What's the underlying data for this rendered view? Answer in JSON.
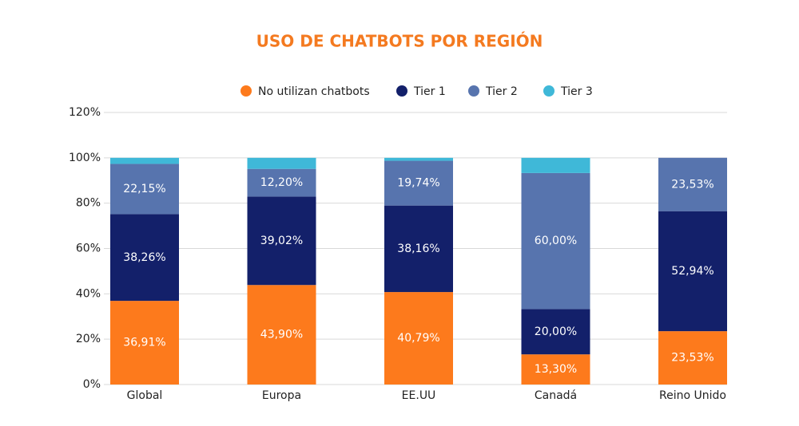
{
  "chart_data": {
    "type": "stacked-bar",
    "title": "USO DE CHATBOTS POR REGIÓN",
    "categories": [
      "Global",
      "Europa",
      "EE.UU",
      "Canadá",
      "Reino Unido"
    ],
    "series": [
      {
        "name": "No utilizan chatbots",
        "color": "#fd7a1c",
        "values": [
          36.91,
          43.9,
          40.79,
          13.3,
          23.53
        ],
        "value_labels": [
          "36,91%",
          "43,90%",
          "40,79%",
          "13,30%",
          "23,53%"
        ]
      },
      {
        "name": "Tier 1",
        "color": "#13206a",
        "values": [
          38.26,
          39.02,
          38.16,
          20.0,
          52.94
        ],
        "value_labels": [
          "38,26%",
          "39,02%",
          "38,16%",
          "20,00%",
          "52,94%"
        ]
      },
      {
        "name": "Tier 2",
        "color": "#5774ae",
        "values": [
          22.15,
          12.2,
          19.74,
          60.0,
          23.53
        ],
        "value_labels": [
          "22,15%",
          "12,20%",
          "19,74%",
          "60,00%",
          "23,53%"
        ]
      },
      {
        "name": "Tier 3",
        "color": "#3fb8d8",
        "values": [
          2.68,
          4.88,
          1.31,
          6.7,
          0
        ]
      }
    ],
    "ylim": [
      0,
      120
    ],
    "yticks": [
      {
        "value": 0,
        "label": "0%"
      },
      {
        "value": 20,
        "label": "20%"
      },
      {
        "value": 40,
        "label": "40%"
      },
      {
        "value": 60,
        "label": "60%"
      },
      {
        "value": 80,
        "label": "80%"
      },
      {
        "value": 100,
        "label": "100%"
      },
      {
        "value": 120,
        "label": "120%"
      }
    ],
    "grid": true
  }
}
